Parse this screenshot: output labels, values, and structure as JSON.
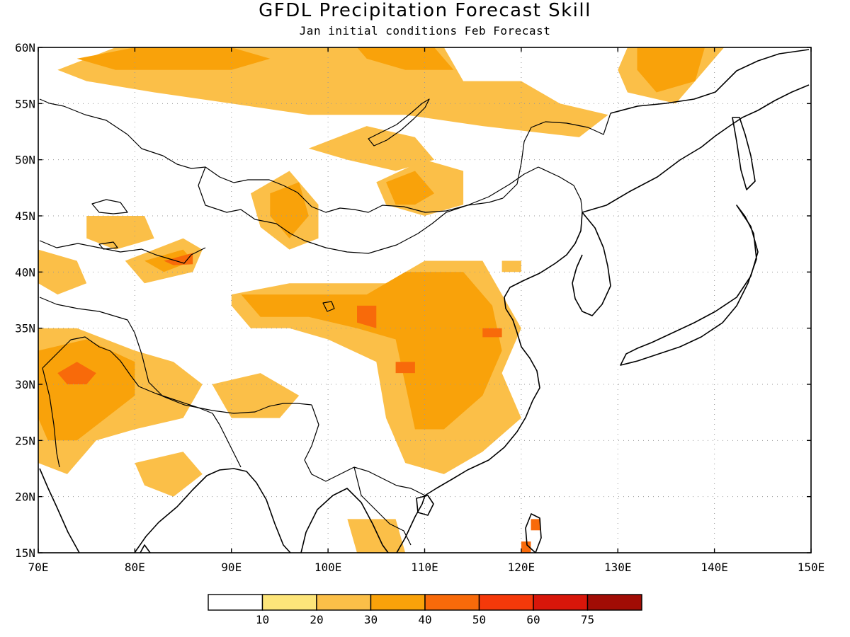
{
  "title": "GFDL Precipitation Forecast Skill",
  "subtitle": "Jan initial conditions  Feb Forecast",
  "map": {
    "lon_range": [
      70,
      150
    ],
    "lat_range": [
      15,
      60
    ],
    "x_ticks": [
      "70E",
      "80E",
      "90E",
      "100E",
      "110E",
      "120E",
      "130E",
      "140E",
      "150E"
    ],
    "y_ticks": [
      "15N",
      "20N",
      "25N",
      "30N",
      "35N",
      "40N",
      "45N",
      "50N",
      "55N",
      "60N"
    ],
    "x_tick_values": [
      70,
      80,
      90,
      100,
      110,
      120,
      130,
      140,
      150
    ],
    "y_tick_values": [
      15,
      20,
      25,
      30,
      35,
      40,
      45,
      50,
      55,
      60
    ],
    "gridlines": "dotted"
  },
  "colorbar": {
    "labels": [
      "10",
      "20",
      "30",
      "40",
      "50",
      "60",
      "75"
    ],
    "colors": [
      "#ffffff",
      "#fde57a",
      "#fbbf48",
      "#f9a20a",
      "#f86a0a",
      "#f5390a",
      "#d8160a",
      "#a10c05"
    ]
  },
  "skill_regions": [
    {
      "level": 1,
      "points": [
        [
          72,
          58
        ],
        [
          78,
          60
        ],
        [
          96,
          60
        ],
        [
          112,
          60
        ],
        [
          114,
          57
        ],
        [
          120,
          57
        ],
        [
          124,
          55
        ],
        [
          129,
          54
        ],
        [
          126,
          52
        ],
        [
          116,
          53
        ],
        [
          108,
          54
        ],
        [
          98,
          54
        ],
        [
          90,
          55
        ],
        [
          82,
          56
        ],
        [
          75,
          57
        ]
      ]
    },
    {
      "level": 2,
      "points": [
        [
          74,
          59
        ],
        [
          80,
          60
        ],
        [
          90,
          60
        ],
        [
          94,
          59
        ],
        [
          90,
          58
        ],
        [
          84,
          58
        ],
        [
          78,
          58
        ]
      ]
    },
    {
      "level": 2,
      "points": [
        [
          103,
          60
        ],
        [
          111,
          60
        ],
        [
          113,
          58
        ],
        [
          108,
          58
        ],
        [
          104,
          59
        ]
      ]
    },
    {
      "level": 1,
      "points": [
        [
          131,
          60
        ],
        [
          141,
          60
        ],
        [
          139,
          58
        ],
        [
          136,
          55
        ],
        [
          131,
          56
        ],
        [
          130,
          58
        ]
      ]
    },
    {
      "level": 2,
      "points": [
        [
          132,
          60
        ],
        [
          139,
          60
        ],
        [
          138,
          57
        ],
        [
          134,
          56
        ],
        [
          132,
          58
        ]
      ]
    },
    {
      "level": 1,
      "points": [
        [
          98,
          51
        ],
        [
          104,
          53
        ],
        [
          109,
          52
        ],
        [
          111,
          50
        ],
        [
          107,
          49
        ],
        [
          102,
          50
        ]
      ]
    },
    {
      "level": 1,
      "points": [
        [
          105,
          48
        ],
        [
          110,
          50
        ],
        [
          114,
          49
        ],
        [
          114,
          46
        ],
        [
          110,
          45
        ],
        [
          106,
          46
        ]
      ]
    },
    {
      "level": 2,
      "points": [
        [
          106,
          48
        ],
        [
          109,
          49
        ],
        [
          111,
          47
        ],
        [
          109,
          46
        ],
        [
          107,
          46
        ]
      ]
    },
    {
      "level": 1,
      "points": [
        [
          92,
          47
        ],
        [
          96,
          49
        ],
        [
          99,
          46
        ],
        [
          99,
          43
        ],
        [
          96,
          42
        ],
        [
          93,
          44
        ]
      ]
    },
    {
      "level": 2,
      "points": [
        [
          94,
          47
        ],
        [
          97,
          48
        ],
        [
          98,
          45
        ],
        [
          96,
          43
        ],
        [
          94,
          45
        ]
      ]
    },
    {
      "level": 1,
      "points": [
        [
          75,
          45
        ],
        [
          81,
          45
        ],
        [
          82,
          43
        ],
        [
          78,
          42
        ],
        [
          75,
          43
        ]
      ]
    },
    {
      "level": 1,
      "points": [
        [
          79,
          41
        ],
        [
          85,
          43
        ],
        [
          87,
          42
        ],
        [
          86,
          40
        ],
        [
          81,
          39
        ]
      ]
    },
    {
      "level": 2,
      "points": [
        [
          81,
          41
        ],
        [
          85,
          42
        ],
        [
          86,
          41
        ],
        [
          83,
          40
        ]
      ]
    },
    {
      "level": 3,
      "points": [
        [
          83,
          41
        ],
        [
          86,
          41.7
        ],
        [
          86,
          40.7
        ],
        [
          84,
          40.6
        ]
      ]
    },
    {
      "level": 1,
      "points": [
        [
          70,
          42
        ],
        [
          74,
          41
        ],
        [
          75,
          39
        ],
        [
          72,
          38
        ],
        [
          70,
          39
        ]
      ]
    },
    {
      "level": 1,
      "points": [
        [
          90,
          38
        ],
        [
          96,
          39
        ],
        [
          102,
          39
        ],
        [
          106,
          39
        ],
        [
          110,
          41
        ],
        [
          116,
          41
        ],
        [
          118,
          38
        ],
        [
          120,
          35
        ],
        [
          118,
          31
        ],
        [
          120,
          27
        ],
        [
          116,
          24
        ],
        [
          112,
          22
        ],
        [
          108,
          23
        ],
        [
          106,
          27
        ],
        [
          105,
          32
        ],
        [
          100,
          34
        ],
        [
          96,
          35
        ],
        [
          92,
          35
        ],
        [
          90,
          37
        ]
      ]
    },
    {
      "level": 2,
      "points": [
        [
          91,
          38
        ],
        [
          97,
          38
        ],
        [
          101,
          38
        ],
        [
          104,
          38
        ],
        [
          108,
          40
        ],
        [
          114,
          40
        ],
        [
          117,
          37
        ],
        [
          118,
          33
        ],
        [
          116,
          29
        ],
        [
          112,
          26
        ],
        [
          109,
          26
        ],
        [
          108,
          30
        ],
        [
          107,
          34
        ],
        [
          103,
          35
        ],
        [
          98,
          36
        ],
        [
          93,
          36
        ]
      ]
    },
    {
      "level": 3,
      "points": [
        [
          116,
          35
        ],
        [
          118,
          35
        ],
        [
          118,
          34.2
        ],
        [
          116,
          34.2
        ]
      ]
    },
    {
      "level": 3,
      "points": [
        [
          103,
          37
        ],
        [
          105,
          37
        ],
        [
          105,
          35
        ],
        [
          103,
          35.5
        ]
      ]
    },
    {
      "level": 3,
      "points": [
        [
          107,
          32
        ],
        [
          109,
          32
        ],
        [
          109,
          31
        ],
        [
          107,
          31
        ]
      ]
    },
    {
      "level": 1,
      "points": [
        [
          70,
          35
        ],
        [
          74,
          35
        ],
        [
          80,
          33
        ],
        [
          84,
          32
        ],
        [
          87,
          30
        ],
        [
          85,
          27
        ],
        [
          80,
          26
        ],
        [
          76,
          25
        ],
        [
          73,
          22
        ],
        [
          70,
          23
        ]
      ]
    },
    {
      "level": 2,
      "points": [
        [
          70,
          33
        ],
        [
          75,
          34
        ],
        [
          80,
          32
        ],
        [
          80,
          29
        ],
        [
          77,
          27
        ],
        [
          74,
          25
        ],
        [
          71,
          25
        ],
        [
          70,
          27
        ]
      ]
    },
    {
      "level": 3,
      "points": [
        [
          72,
          31
        ],
        [
          74,
          32
        ],
        [
          76,
          31
        ],
        [
          75,
          30
        ],
        [
          73,
          30
        ]
      ]
    },
    {
      "level": 1,
      "points": [
        [
          88,
          30
        ],
        [
          93,
          31
        ],
        [
          97,
          29
        ],
        [
          95,
          27
        ],
        [
          90,
          27
        ]
      ]
    },
    {
      "level": 1,
      "points": [
        [
          80,
          23
        ],
        [
          85,
          24
        ],
        [
          87,
          22
        ],
        [
          84,
          20
        ],
        [
          81,
          21
        ]
      ]
    },
    {
      "level": 1,
      "points": [
        [
          102,
          18
        ],
        [
          107,
          18
        ],
        [
          108,
          15
        ],
        [
          103,
          15
        ]
      ]
    },
    {
      "level": 3,
      "points": [
        [
          121,
          18
        ],
        [
          122,
          18
        ],
        [
          122,
          17
        ],
        [
          121,
          17
        ]
      ]
    },
    {
      "level": 3,
      "points": [
        [
          120,
          16
        ],
        [
          121,
          16
        ],
        [
          121,
          15
        ],
        [
          120,
          15
        ]
      ]
    },
    {
      "level": 1,
      "points": [
        [
          118,
          41
        ],
        [
          120,
          41
        ],
        [
          120,
          40
        ],
        [
          118,
          40
        ]
      ]
    }
  ]
}
